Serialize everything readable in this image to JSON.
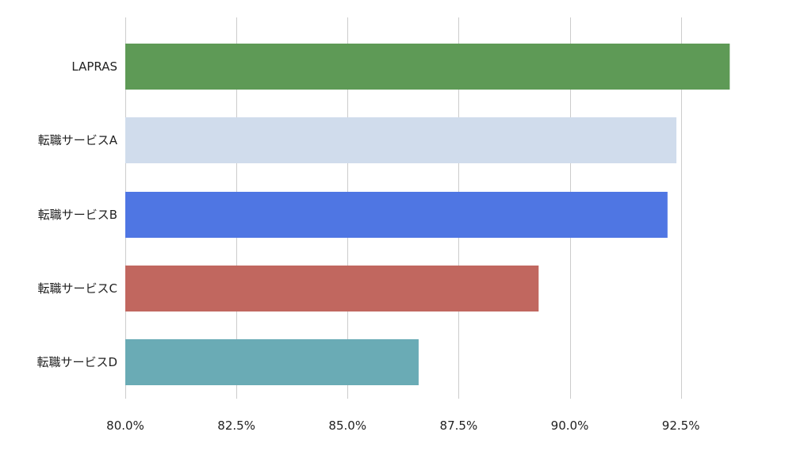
{
  "chart_data": {
    "type": "bar",
    "orientation": "horizontal",
    "categories": [
      "LAPRAS",
      "転職サービスA",
      "転職サービスB",
      "転職サービスC",
      "転職サービスD"
    ],
    "values": [
      93.6,
      92.4,
      92.2,
      89.3,
      86.6
    ],
    "colors": [
      "#5e9a56",
      "#d0dcec",
      "#4f76e3",
      "#c1675f",
      "#6aabb5"
    ],
    "xlim": [
      80,
      95
    ],
    "xticks": [
      80.0,
      82.5,
      85.0,
      87.5,
      90.0,
      92.5
    ],
    "xtick_labels": [
      "80.0%",
      "82.5%",
      "85.0%",
      "87.5%",
      "90.0%",
      "92.5%"
    ],
    "title": "",
    "xlabel": "",
    "ylabel": "",
    "grid": "vertical",
    "legend": "none",
    "gridline_color": "#cccccc"
  }
}
